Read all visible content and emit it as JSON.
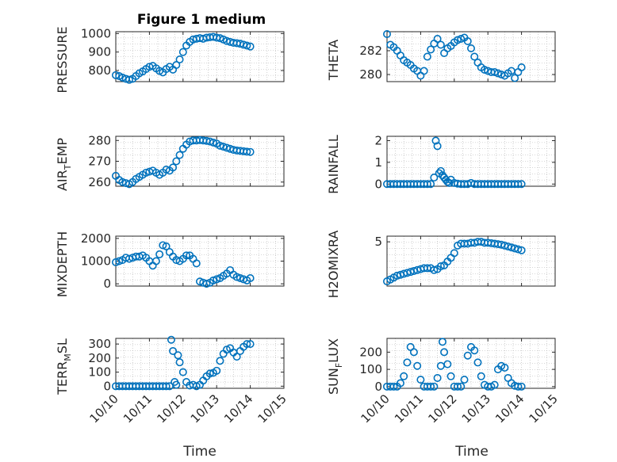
{
  "figure_title": "Figure 1 medium",
  "marker_color": "#0072BD",
  "x_axis": {
    "label": "Time",
    "ticks": [
      "10/10",
      "10/11",
      "10/12",
      "10/13",
      "10/14",
      "10/15"
    ],
    "range_days": [
      0,
      5
    ]
  },
  "chart_data": [
    {
      "type": "scatter",
      "ylabel": "PRESSURE",
      "ylim": [
        740,
        1010
      ],
      "yticks": [
        800,
        900,
        1000
      ],
      "grid": true,
      "x": [
        0,
        0.1,
        0.2,
        0.3,
        0.4,
        0.5,
        0.6,
        0.7,
        0.8,
        0.9,
        1.0,
        1.1,
        1.2,
        1.3,
        1.4,
        1.5,
        1.6,
        1.7,
        1.8,
        1.9,
        2.0,
        2.1,
        2.2,
        2.3,
        2.4,
        2.5,
        2.6,
        2.7,
        2.8,
        2.9,
        3.0,
        3.1,
        3.2,
        3.3,
        3.4,
        3.5,
        3.6,
        3.7,
        3.8,
        3.9,
        4.0
      ],
      "y": [
        775,
        770,
        762,
        755,
        750,
        755,
        770,
        785,
        795,
        808,
        820,
        825,
        812,
        798,
        790,
        808,
        820,
        805,
        830,
        860,
        900,
        935,
        955,
        968,
        972,
        975,
        972,
        978,
        980,
        982,
        978,
        975,
        968,
        960,
        955,
        950,
        948,
        945,
        940,
        935,
        930
      ]
    },
    {
      "type": "scatter",
      "ylabel": "THETA",
      "ylim": [
        279.4,
        283.6
      ],
      "yticks": [
        280,
        282
      ],
      "grid": true,
      "x": [
        0,
        0.1,
        0.2,
        0.3,
        0.4,
        0.5,
        0.6,
        0.7,
        0.8,
        0.9,
        1.0,
        1.1,
        1.2,
        1.3,
        1.4,
        1.5,
        1.6,
        1.7,
        1.8,
        1.9,
        2.0,
        2.1,
        2.2,
        2.3,
        2.4,
        2.5,
        2.6,
        2.7,
        2.8,
        2.9,
        3.0,
        3.1,
        3.2,
        3.3,
        3.4,
        3.5,
        3.6,
        3.7,
        3.8,
        3.9,
        4.0
      ],
      "y": [
        283.4,
        282.5,
        282.3,
        282.0,
        281.6,
        281.2,
        281.0,
        280.8,
        280.5,
        280.3,
        279.9,
        280.3,
        281.5,
        282.1,
        282.6,
        283.0,
        282.5,
        281.8,
        282.2,
        282.4,
        282.7,
        282.9,
        283.0,
        283.1,
        282.8,
        282.2,
        281.5,
        281.0,
        280.6,
        280.4,
        280.3,
        280.2,
        280.2,
        280.1,
        280.0,
        279.9,
        280.1,
        280.3,
        279.7,
        280.2,
        280.6
      ]
    },
    {
      "type": "scatter",
      "ylabel": "AIR_TEMP",
      "ylim": [
        258,
        282
      ],
      "yticks": [
        260,
        270,
        280
      ],
      "grid": true,
      "x": [
        0,
        0.1,
        0.2,
        0.3,
        0.4,
        0.5,
        0.6,
        0.7,
        0.8,
        0.9,
        1.0,
        1.1,
        1.2,
        1.3,
        1.4,
        1.5,
        1.6,
        1.7,
        1.8,
        1.9,
        2.0,
        2.1,
        2.2,
        2.3,
        2.4,
        2.5,
        2.6,
        2.7,
        2.8,
        2.9,
        3.0,
        3.1,
        3.2,
        3.3,
        3.4,
        3.5,
        3.6,
        3.7,
        3.8,
        3.9,
        4.0
      ],
      "y": [
        263,
        261,
        260,
        259.5,
        259,
        260,
        261.5,
        262.5,
        263.5,
        264.5,
        265,
        265.5,
        264.5,
        263.5,
        264.5,
        266,
        265.5,
        267,
        270,
        273,
        276,
        278,
        279.5,
        280,
        280,
        280.2,
        280,
        279.8,
        279.5,
        279,
        278.5,
        277.5,
        277,
        276.5,
        276,
        275.5,
        275.2,
        275,
        274.8,
        274.6,
        274.5
      ]
    },
    {
      "type": "scatter",
      "ylabel": "RAINFALL",
      "ylim": [
        -0.1,
        2.2
      ],
      "yticks": [
        0,
        1,
        2
      ],
      "grid": true,
      "x": [
        0,
        0.1,
        0.2,
        0.3,
        0.4,
        0.5,
        0.6,
        0.7,
        0.8,
        0.9,
        1.0,
        1.1,
        1.2,
        1.3,
        1.4,
        1.45,
        1.5,
        1.55,
        1.6,
        1.65,
        1.7,
        1.75,
        1.8,
        1.85,
        1.9,
        2.0,
        2.1,
        2.2,
        2.3,
        2.4,
        2.5,
        2.6,
        2.7,
        2.8,
        2.9,
        3.0,
        3.1,
        3.2,
        3.3,
        3.4,
        3.5,
        3.6,
        3.7,
        3.8,
        3.9,
        4.0
      ],
      "y": [
        0,
        0,
        0,
        0,
        0,
        0,
        0,
        0,
        0,
        0,
        0,
        0,
        0,
        0,
        0.3,
        2.0,
        1.75,
        0.5,
        0.6,
        0.4,
        0.3,
        0.2,
        0.1,
        0.05,
        0.2,
        0.05,
        0.02,
        0,
        0,
        0,
        0.05,
        0,
        0,
        0,
        0,
        0,
        0,
        0,
        0,
        0,
        0,
        0,
        0,
        0,
        0,
        0
      ]
    },
    {
      "type": "scatter",
      "ylabel": "MIXDEPTH",
      "ylim": [
        -100,
        2100
      ],
      "yticks": [
        0,
        1000,
        2000
      ],
      "grid": true,
      "x": [
        0,
        0.1,
        0.2,
        0.3,
        0.4,
        0.5,
        0.6,
        0.7,
        0.8,
        0.9,
        1.0,
        1.1,
        1.2,
        1.3,
        1.4,
        1.5,
        1.6,
        1.7,
        1.8,
        1.9,
        2.0,
        2.1,
        2.2,
        2.3,
        2.4,
        2.5,
        2.6,
        2.7,
        2.8,
        2.9,
        3.0,
        3.1,
        3.2,
        3.3,
        3.4,
        3.5,
        3.6,
        3.7,
        3.8,
        3.9,
        4.0
      ],
      "y": [
        950,
        1000,
        1050,
        1150,
        1100,
        1150,
        1200,
        1200,
        1250,
        1150,
        1000,
        800,
        1000,
        1300,
        1700,
        1650,
        1400,
        1200,
        1050,
        1000,
        1100,
        1250,
        1250,
        1100,
        900,
        100,
        50,
        0,
        50,
        150,
        200,
        250,
        350,
        450,
        600,
        400,
        300,
        250,
        200,
        150,
        250
      ]
    },
    {
      "type": "scatter",
      "ylabel": "H2OMIXRA",
      "ylim": [
        0.3,
        5.6
      ],
      "yticks": [
        5
      ],
      "grid": true,
      "x": [
        0,
        0.1,
        0.2,
        0.3,
        0.4,
        0.5,
        0.6,
        0.7,
        0.8,
        0.9,
        1.0,
        1.1,
        1.2,
        1.3,
        1.4,
        1.5,
        1.6,
        1.7,
        1.8,
        1.9,
        2.0,
        2.1,
        2.2,
        2.3,
        2.4,
        2.5,
        2.6,
        2.7,
        2.8,
        2.9,
        3.0,
        3.1,
        3.2,
        3.3,
        3.4,
        3.5,
        3.6,
        3.7,
        3.8,
        3.9,
        4.0
      ],
      "y": [
        0.8,
        1.0,
        1.2,
        1.4,
        1.5,
        1.6,
        1.7,
        1.8,
        1.9,
        2.0,
        2.1,
        2.2,
        2.2,
        2.2,
        2.0,
        2.1,
        2.4,
        2.5,
        2.9,
        3.3,
        3.8,
        4.6,
        4.8,
        4.8,
        4.8,
        4.9,
        4.9,
        5.0,
        5.0,
        4.9,
        4.9,
        4.85,
        4.8,
        4.75,
        4.7,
        4.6,
        4.5,
        4.4,
        4.3,
        4.2,
        4.1
      ]
    },
    {
      "type": "scatter",
      "ylabel": "TERR_MSL",
      "ylim": [
        -15,
        340
      ],
      "yticks": [
        0,
        100,
        200,
        300
      ],
      "grid": true,
      "x": [
        0,
        0.1,
        0.2,
        0.3,
        0.4,
        0.5,
        0.6,
        0.7,
        0.8,
        0.9,
        1.0,
        1.1,
        1.2,
        1.3,
        1.4,
        1.5,
        1.6,
        1.65,
        1.7,
        1.75,
        1.8,
        1.85,
        1.9,
        2.0,
        2.1,
        2.2,
        2.3,
        2.4,
        2.5,
        2.6,
        2.7,
        2.8,
        2.9,
        3.0,
        3.1,
        3.2,
        3.3,
        3.4,
        3.5,
        3.6,
        3.7,
        3.8,
        3.9,
        4.0
      ],
      "y": [
        0,
        0,
        0,
        0,
        0,
        0,
        0,
        0,
        0,
        0,
        0,
        0,
        0,
        0,
        0,
        0,
        0,
        330,
        250,
        30,
        10,
        220,
        170,
        100,
        30,
        5,
        10,
        0,
        10,
        40,
        70,
        90,
        95,
        110,
        180,
        230,
        260,
        270,
        240,
        210,
        250,
        280,
        300,
        300
      ]
    },
    {
      "type": "scatter",
      "ylabel": "SUN_FLUX",
      "ylim": [
        -10,
        280
      ],
      "yticks": [
        0,
        100,
        200
      ],
      "grid": true,
      "x": [
        0,
        0.1,
        0.2,
        0.3,
        0.4,
        0.5,
        0.6,
        0.7,
        0.8,
        0.9,
        1.0,
        1.1,
        1.2,
        1.3,
        1.4,
        1.5,
        1.6,
        1.65,
        1.7,
        1.8,
        1.9,
        2.0,
        2.1,
        2.2,
        2.3,
        2.4,
        2.5,
        2.6,
        2.7,
        2.8,
        2.9,
        3.0,
        3.1,
        3.2,
        3.3,
        3.4,
        3.5,
        3.6,
        3.7,
        3.8,
        3.9,
        4.0
      ],
      "y": [
        0,
        0,
        0,
        0,
        20,
        60,
        140,
        230,
        200,
        120,
        40,
        0,
        0,
        0,
        0,
        50,
        120,
        260,
        200,
        130,
        60,
        0,
        0,
        0,
        40,
        180,
        230,
        210,
        140,
        60,
        10,
        0,
        0,
        10,
        100,
        120,
        110,
        50,
        20,
        5,
        0,
        0
      ]
    }
  ]
}
